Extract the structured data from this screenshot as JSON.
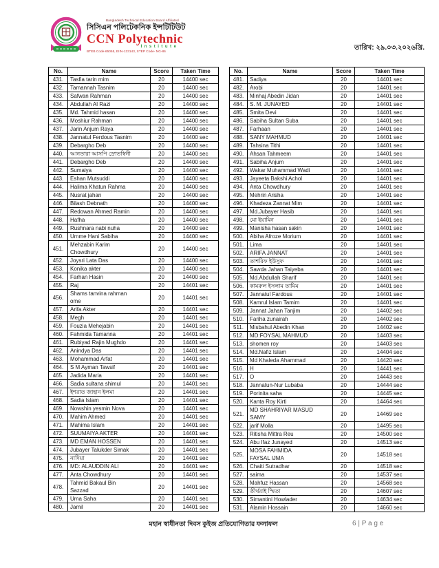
{
  "header": {
    "logo": {
      "affiliation": "Bangladesh Technical Education Board Affiliated",
      "name_bn": "সিসিএন পলিটেকনিক ইন্সটিটিউট",
      "name_en": "CCN Polytechnic",
      "subtitle": "Institute",
      "codes": "BTEB Code-65055, EIIN-133143, STEP Code- NG-86"
    },
    "date": "তারিখ: ২৯.০৩.২০২৬খ্রি."
  },
  "columns": [
    "No.",
    "Name",
    "Score",
    "Taken Time"
  ],
  "tables": {
    "left": {
      "rows": [
        [
          "431.",
          "Tasfia tarin mim",
          "20",
          "14400 sec"
        ],
        [
          "432.",
          "Tamannah Tasnim",
          "20",
          "14400 sec"
        ],
        [
          "433.",
          "Safwan Rahman",
          "20",
          "14400 sec"
        ],
        [
          "434.",
          "Abdullah Al Razi",
          "20",
          "14400 sec"
        ],
        [
          "435.",
          "Md. Tahmid hasan",
          "20",
          "14400 sec"
        ],
        [
          "436.",
          "Moshiur Rahman",
          "20",
          "14400 sec"
        ],
        [
          "437.",
          "Jarin Anjum Raya",
          "20",
          "14400 sec"
        ],
        [
          "438.",
          "Jannatul Ferdous Tasnim",
          "20",
          "14400 sec"
        ],
        [
          "439.",
          "Debargho Deb",
          "20",
          "14400 sec"
        ],
        [
          "440.",
          "আনতারা আসপি স্রোতস্বিনী",
          "20",
          "14400 sec"
        ],
        [
          "441.",
          "Debargho Deb",
          "20",
          "14400 sec"
        ],
        [
          "442.",
          "Sumaiya",
          "20",
          "14400 sec"
        ],
        [
          "443.",
          "Eshan Mutsuddi",
          "20",
          "14400 sec"
        ],
        [
          "444.",
          "Halima Khatun Rahma",
          "20",
          "14400 sec"
        ],
        [
          "445.",
          "Nusrat jahan",
          "20",
          "14400 sec"
        ],
        [
          "446.",
          "Bilash Debnath",
          "20",
          "14400 sec"
        ],
        [
          "447.",
          "Redowan Ahmed Ramin",
          "20",
          "14400 sec"
        ],
        [
          "448.",
          "Hafha",
          "20",
          "14400 sec"
        ],
        [
          "449.",
          "Rushnara nabi nuha",
          "20",
          "14400 sec"
        ],
        [
          "450.",
          "Umme Hani Sabiha",
          "20",
          "14400 sec"
        ],
        [
          "451.",
          "Mehzabin Karim\nChowdhury",
          "20",
          "14400 sec"
        ],
        [
          "452.",
          "Joysri Lata Das",
          "20",
          "14400 sec"
        ],
        [
          "453.",
          "Konika akter",
          "20",
          "14400 sec"
        ],
        [
          "454.",
          "Farhan Hasin",
          "20",
          "14400 sec"
        ],
        [
          "455.",
          "Raj",
          "20",
          "14401 sec"
        ],
        [
          "456.",
          "Shams tanvina rahman\nome",
          "20",
          "14401 sec"
        ],
        [
          "457.",
          "Arifa Akter",
          "20",
          "14401 sec"
        ],
        [
          "458.",
          "Megh",
          "20",
          "14401 sec"
        ],
        [
          "459.",
          "Fouzia Mehejabin",
          "20",
          "14401 sec"
        ],
        [
          "460.",
          "Fahmida Tamanna",
          "20",
          "14401 sec"
        ],
        [
          "461.",
          "Rubiyad Rajin Mughdo",
          "20",
          "14401 sec"
        ],
        [
          "462.",
          "Anindya Das",
          "20",
          "14401 sec"
        ],
        [
          "463.",
          "Mohammad Arfat",
          "20",
          "14401 sec"
        ],
        [
          "464.",
          "S M Ayman Tawsif",
          "20",
          "14401 sec"
        ],
        [
          "465.",
          "Jadida Maria",
          "20",
          "14401 sec"
        ],
        [
          "466.",
          "Sadia sultana shimul",
          "20",
          "14401 sec"
        ],
        [
          "467.",
          "ইশরাত জাহান ইলমা",
          "20",
          "14401 sec"
        ],
        [
          "468.",
          "Sadia Islam",
          "20",
          "14401 sec"
        ],
        [
          "469.",
          "Nowshin yesmin Nova",
          "20",
          "14401 sec"
        ],
        [
          "470.",
          "Mahim Ahmed",
          "20",
          "14401 sec"
        ],
        [
          "471.",
          "Mahima Islam",
          "20",
          "14401 sec"
        ],
        [
          "472.",
          "SUUMAIYA AKTER",
          "20",
          "14401 sec"
        ],
        [
          "473.",
          "MD EMAN HOSSEN",
          "20",
          "14401 sec"
        ],
        [
          "474.",
          "Jubayer Talukder Simak",
          "20",
          "14401 sec"
        ],
        [
          "475.",
          "নাদিয়া",
          "20",
          "14401 sec"
        ],
        [
          "476.",
          "MD: ALAUDDIN ALI",
          "20",
          "14401 sec"
        ],
        [
          "477.",
          "Anta Chowdhury",
          "20",
          "14401 sec"
        ],
        [
          "478.",
          "Tahmid Bakaul Bin\nSazzad",
          "20",
          "14401 sec"
        ],
        [
          "479.",
          "Uma Saha",
          "20",
          "14401 sec"
        ],
        [
          "480.",
          "Jamil",
          "20",
          "14401 sec"
        ]
      ]
    },
    "right": {
      "rows": [
        [
          "481.",
          "Sadiya",
          "20",
          "14401 sec"
        ],
        [
          "482.",
          "Arobi",
          "20",
          "14401 sec"
        ],
        [
          "483.",
          "Minhaj Abedin Jidan",
          "20",
          "14401 sec"
        ],
        [
          "484.",
          "S. M. JUNAYED",
          "20",
          "14401 sec"
        ],
        [
          "485.",
          "Smita Devi",
          "20",
          "14401 sec"
        ],
        [
          "486.",
          "Sabiha Sultan Suba",
          "20",
          "14401 sec"
        ],
        [
          "487.",
          "Farhaan",
          "20",
          "14401 sec"
        ],
        [
          "488.",
          "SANY MAHMUD",
          "20",
          "14401 sec"
        ],
        [
          "489.",
          "Tahsina Tithi",
          "20",
          "14401 sec"
        ],
        [
          "490.",
          "Ahsan Tahmeem",
          "20",
          "14401 sec"
        ],
        [
          "491.",
          "Sabiha Anjum",
          "20",
          "14401 sec"
        ],
        [
          "492.",
          "Wakar Muhammad Wadi",
          "20",
          "14401 sec"
        ],
        [
          "493.",
          "Jayeeta Bakshi Achol",
          "20",
          "14401 sec"
        ],
        [
          "494.",
          "Anta Chowdhury",
          "20",
          "14401 sec"
        ],
        [
          "495.",
          "Mehrin Arisha",
          "20",
          "14401 sec"
        ],
        [
          "496.",
          "Khadeza Zannat Mim",
          "20",
          "14401 sec"
        ],
        [
          "497.",
          "Md.Jubayer Hasib",
          "20",
          "14401 sec"
        ],
        [
          "498.",
          "মো ইয়ামিন",
          "20",
          "14401 sec"
        ],
        [
          "499.",
          "Manisha hasan sakin",
          "20",
          "14401 sec"
        ],
        [
          "500.",
          "Abiha Afroze Morium",
          "20",
          "14401 sec"
        ],
        [
          "501.",
          "Lima",
          "20",
          "14401 sec"
        ],
        [
          "502.",
          "ARIFA JANNAT",
          "20",
          "14401 sec"
        ],
        [
          "503.",
          "তাশরিফ ইউসুফ",
          "20",
          "14401 sec"
        ],
        [
          "504.",
          "Sawda Jahan Taiyeba",
          "20",
          "14401 sec"
        ],
        [
          "505.",
          "Md.Abdullah Sharif",
          "20",
          "14401 sec"
        ],
        [
          "506.",
          "কামরুল ইসলাম তামিম",
          "20",
          "14401 sec"
        ],
        [
          "507.",
          "Jannatul Fardous",
          "20",
          "14401 sec"
        ],
        [
          "508.",
          "Kamrul Islam Tamim",
          "20",
          "14401 sec"
        ],
        [
          "509.",
          "Jannat Jahan Tanjim",
          "20",
          "14402 sec"
        ],
        [
          "510.",
          "Fariha zunairah",
          "20",
          "14402 sec"
        ],
        [
          "511.",
          "Misbahul Abedin Khan",
          "20",
          "14402 sec"
        ],
        [
          "512.",
          "MD:FOYSAL MAHMUD",
          "20",
          "14403 sec"
        ],
        [
          "513.",
          "shomen roy",
          "20",
          "14403 sec"
        ],
        [
          "514.",
          "Md.Nafiz Islam",
          "20",
          "14404 sec"
        ],
        [
          "515.",
          "Md Khaleda Ahammad",
          "20",
          "14420 sec"
        ],
        [
          "516.",
          "H",
          "20",
          "14441 sec"
        ],
        [
          "517.",
          "O",
          "20",
          "14443 sec"
        ],
        [
          "518.",
          "Jannatun-Nur Lubaba",
          "20",
          "14444 sec"
        ],
        [
          "519.",
          "Porinita saha",
          "20",
          "14445 sec"
        ],
        [
          "520.",
          "Kanta Roy Kirti",
          "20",
          "14464 sec"
        ],
        [
          "521.",
          "MD SHAHRIYAR MASUD\nSAMY",
          "20",
          "14469 sec"
        ],
        [
          "522.",
          "jarif Molla",
          "20",
          "14495 sec"
        ],
        [
          "523.",
          "Ritisha Mittra Reu",
          "20",
          "14500 sec"
        ],
        [
          "524.",
          "Abu Ifaz Junayed",
          "20",
          "14513 sec"
        ],
        [
          "525.",
          "MOSA FAHMIDA\nFAYSAL IJMA",
          "20",
          "14518 sec"
        ],
        [
          "526.",
          "Chaiti Sutradhar",
          "20",
          "14518 sec"
        ],
        [
          "527.",
          "saima",
          "20",
          "14537 sec"
        ],
        [
          "528.",
          "Mahfuz Hassan",
          "20",
          "14568 sec"
        ],
        [
          "529.",
          "তীর্থরাই স্মিতা",
          "20",
          "14607 sec"
        ],
        [
          "530.",
          "Simantini Howlader",
          "20",
          "14634 sec"
        ],
        [
          "531.",
          "Alamin Hossain",
          "20",
          "14660 sec"
        ]
      ]
    }
  },
  "footer": {
    "title": "মহান স্বাধীনতা দিবস কুইজ প্রতিযোগিতার ফলাফল",
    "page_number": "6 | P a g e"
  },
  "colors": {
    "brand_red": "#d42127",
    "brand_green": "#2e9c44",
    "brand_magenta": "#d6368f",
    "table_border": "#000000",
    "page_number_gray": "#737373"
  }
}
